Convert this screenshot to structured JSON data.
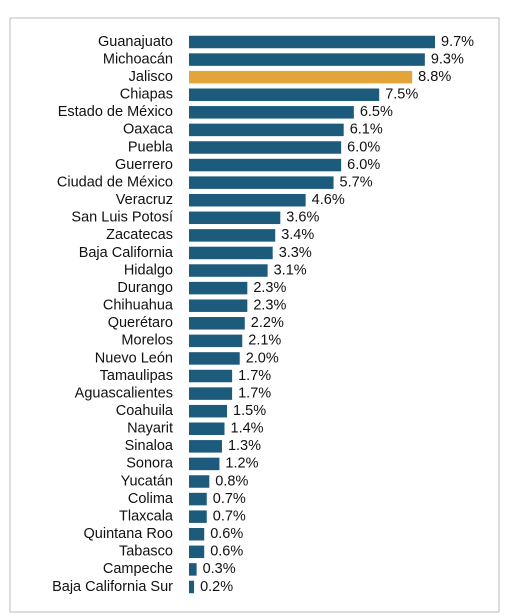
{
  "chart_data": {
    "type": "bar",
    "orientation": "horizontal",
    "categories": [
      "Guanajuato",
      "Michoacán",
      "Jalisco",
      "Chiapas",
      "Estado de México",
      "Oaxaca",
      "Puebla",
      "Guerrero",
      "Ciudad de México",
      "Veracruz",
      "San Luis Potosí",
      "Zacatecas",
      "Baja California",
      "Hidalgo",
      "Durango",
      "Chihuahua",
      "Querétaro",
      "Morelos",
      "Nuevo León",
      "Tamaulipas",
      "Aguascalientes",
      "Coahuila",
      "Nayarit",
      "Sinaloa",
      "Sonora",
      "Yucatán",
      "Colima",
      "Tlaxcala",
      "Quintana Roo",
      "Tabasco",
      "Campeche",
      "Baja California Sur"
    ],
    "values": [
      9.7,
      9.3,
      8.8,
      7.5,
      6.5,
      6.1,
      6.0,
      6.0,
      5.7,
      4.6,
      3.6,
      3.4,
      3.3,
      3.1,
      2.3,
      2.3,
      2.2,
      2.1,
      2.0,
      1.7,
      1.7,
      1.5,
      1.4,
      1.3,
      1.2,
      0.8,
      0.7,
      0.7,
      0.6,
      0.6,
      0.3,
      0.2
    ],
    "value_labels": [
      "9.7%",
      "9.3%",
      "8.8%",
      "7.5%",
      "6.5%",
      "6.1%",
      "6.0%",
      "6.0%",
      "5.7%",
      "4.6%",
      "3.6%",
      "3.4%",
      "3.3%",
      "3.1%",
      "2.3%",
      "2.3%",
      "2.2%",
      "2.1%",
      "2.0%",
      "1.7%",
      "1.7%",
      "1.5%",
      "1.4%",
      "1.3%",
      "1.2%",
      "0.8%",
      "0.7%",
      "0.7%",
      "0.6%",
      "0.6%",
      "0.3%",
      "0.2%"
    ],
    "colors": [
      "#1d5b7c",
      "#1d5b7c",
      "#e3a53a",
      "#1d5b7c",
      "#1d5b7c",
      "#1d5b7c",
      "#1d5b7c",
      "#1d5b7c",
      "#1d5b7c",
      "#1d5b7c",
      "#1d5b7c",
      "#1d5b7c",
      "#1d5b7c",
      "#1d5b7c",
      "#1d5b7c",
      "#1d5b7c",
      "#1d5b7c",
      "#1d5b7c",
      "#1d5b7c",
      "#1d5b7c",
      "#1d5b7c",
      "#1d5b7c",
      "#1d5b7c",
      "#1d5b7c",
      "#1d5b7c",
      "#1d5b7c",
      "#1d5b7c",
      "#1d5b7c",
      "#1d5b7c",
      "#1d5b7c",
      "#1d5b7c",
      "#1d5b7c"
    ]
  }
}
